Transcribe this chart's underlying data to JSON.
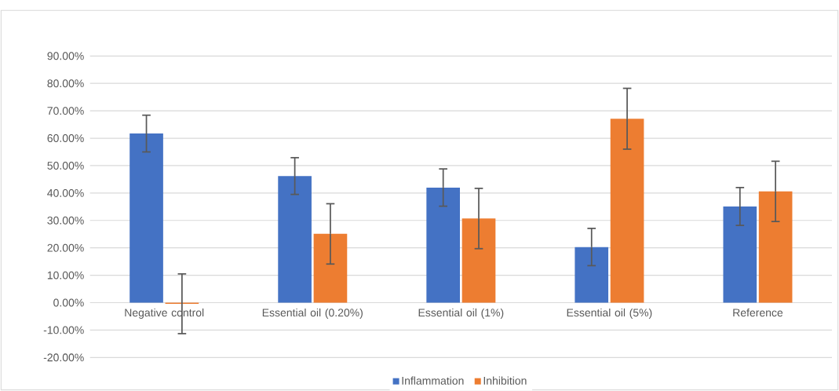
{
  "chart_data": {
    "type": "bar",
    "categories": [
      "Negative control",
      "Essential oil (0.20%)",
      "Essential oil (1%)",
      "Essential oil (5%)",
      "Reference"
    ],
    "series": [
      {
        "name": "Inflammation",
        "color": "#4472c4",
        "values": [
          61.7,
          46.2,
          42.0,
          20.3,
          35.1
        ],
        "errors": [
          6.7,
          6.7,
          6.8,
          6.8,
          6.9
        ]
      },
      {
        "name": "Inhibition",
        "color": "#ed7d31",
        "values": [
          -0.4,
          25.1,
          30.7,
          67.1,
          40.6
        ],
        "errors": [
          10.9,
          11.0,
          11.0,
          11.1,
          11.0
        ]
      }
    ],
    "ylim": [
      -20,
      90
    ],
    "yticks": [
      {
        "value": -20,
        "label": "-20.00%"
      },
      {
        "value": -10,
        "label": "-10.00%"
      },
      {
        "value": 0,
        "label": "0.00%"
      },
      {
        "value": 10,
        "label": "10.00%"
      },
      {
        "value": 20,
        "label": "20.00%"
      },
      {
        "value": 30,
        "label": "30.00%"
      },
      {
        "value": 40,
        "label": "40.00%"
      },
      {
        "value": 50,
        "label": "50.00%"
      },
      {
        "value": 60,
        "label": "60.00%"
      },
      {
        "value": 70,
        "label": "70.00%"
      },
      {
        "value": 80,
        "label": "80.00%"
      },
      {
        "value": 90,
        "label": "90.00%"
      }
    ],
    "grid": "y",
    "legend": "bottom"
  }
}
